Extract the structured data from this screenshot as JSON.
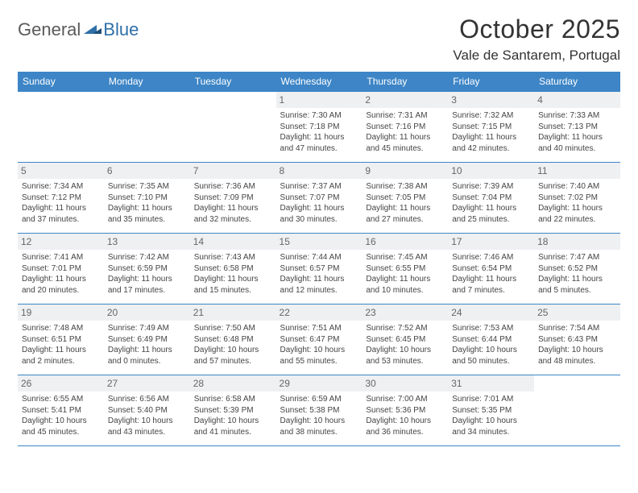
{
  "logo": {
    "general": "General",
    "blue": "Blue"
  },
  "title": "October 2025",
  "location": "Vale de Santarem, Portugal",
  "colors": {
    "header_bg": "#3d85c6",
    "header_fg": "#ffffff",
    "body_bg": "#ffffff",
    "text": "#333333",
    "daynum_bg": "#eef0f2",
    "daynum_fg": "#666666",
    "border": "#3d85c6",
    "logo_gray": "#5a5a5a",
    "logo_blue": "#2f6fa8"
  },
  "day_headers": [
    "Sunday",
    "Monday",
    "Tuesday",
    "Wednesday",
    "Thursday",
    "Friday",
    "Saturday"
  ],
  "weeks": [
    [
      {
        "n": "",
        "sr": "",
        "ss": "",
        "dl": ""
      },
      {
        "n": "",
        "sr": "",
        "ss": "",
        "dl": ""
      },
      {
        "n": "",
        "sr": "",
        "ss": "",
        "dl": ""
      },
      {
        "n": "1",
        "sr": "Sunrise: 7:30 AM",
        "ss": "Sunset: 7:18 PM",
        "dl": "Daylight: 11 hours and 47 minutes."
      },
      {
        "n": "2",
        "sr": "Sunrise: 7:31 AM",
        "ss": "Sunset: 7:16 PM",
        "dl": "Daylight: 11 hours and 45 minutes."
      },
      {
        "n": "3",
        "sr": "Sunrise: 7:32 AM",
        "ss": "Sunset: 7:15 PM",
        "dl": "Daylight: 11 hours and 42 minutes."
      },
      {
        "n": "4",
        "sr": "Sunrise: 7:33 AM",
        "ss": "Sunset: 7:13 PM",
        "dl": "Daylight: 11 hours and 40 minutes."
      }
    ],
    [
      {
        "n": "5",
        "sr": "Sunrise: 7:34 AM",
        "ss": "Sunset: 7:12 PM",
        "dl": "Daylight: 11 hours and 37 minutes."
      },
      {
        "n": "6",
        "sr": "Sunrise: 7:35 AM",
        "ss": "Sunset: 7:10 PM",
        "dl": "Daylight: 11 hours and 35 minutes."
      },
      {
        "n": "7",
        "sr": "Sunrise: 7:36 AM",
        "ss": "Sunset: 7:09 PM",
        "dl": "Daylight: 11 hours and 32 minutes."
      },
      {
        "n": "8",
        "sr": "Sunrise: 7:37 AM",
        "ss": "Sunset: 7:07 PM",
        "dl": "Daylight: 11 hours and 30 minutes."
      },
      {
        "n": "9",
        "sr": "Sunrise: 7:38 AM",
        "ss": "Sunset: 7:05 PM",
        "dl": "Daylight: 11 hours and 27 minutes."
      },
      {
        "n": "10",
        "sr": "Sunrise: 7:39 AM",
        "ss": "Sunset: 7:04 PM",
        "dl": "Daylight: 11 hours and 25 minutes."
      },
      {
        "n": "11",
        "sr": "Sunrise: 7:40 AM",
        "ss": "Sunset: 7:02 PM",
        "dl": "Daylight: 11 hours and 22 minutes."
      }
    ],
    [
      {
        "n": "12",
        "sr": "Sunrise: 7:41 AM",
        "ss": "Sunset: 7:01 PM",
        "dl": "Daylight: 11 hours and 20 minutes."
      },
      {
        "n": "13",
        "sr": "Sunrise: 7:42 AM",
        "ss": "Sunset: 6:59 PM",
        "dl": "Daylight: 11 hours and 17 minutes."
      },
      {
        "n": "14",
        "sr": "Sunrise: 7:43 AM",
        "ss": "Sunset: 6:58 PM",
        "dl": "Daylight: 11 hours and 15 minutes."
      },
      {
        "n": "15",
        "sr": "Sunrise: 7:44 AM",
        "ss": "Sunset: 6:57 PM",
        "dl": "Daylight: 11 hours and 12 minutes."
      },
      {
        "n": "16",
        "sr": "Sunrise: 7:45 AM",
        "ss": "Sunset: 6:55 PM",
        "dl": "Daylight: 11 hours and 10 minutes."
      },
      {
        "n": "17",
        "sr": "Sunrise: 7:46 AM",
        "ss": "Sunset: 6:54 PM",
        "dl": "Daylight: 11 hours and 7 minutes."
      },
      {
        "n": "18",
        "sr": "Sunrise: 7:47 AM",
        "ss": "Sunset: 6:52 PM",
        "dl": "Daylight: 11 hours and 5 minutes."
      }
    ],
    [
      {
        "n": "19",
        "sr": "Sunrise: 7:48 AM",
        "ss": "Sunset: 6:51 PM",
        "dl": "Daylight: 11 hours and 2 minutes."
      },
      {
        "n": "20",
        "sr": "Sunrise: 7:49 AM",
        "ss": "Sunset: 6:49 PM",
        "dl": "Daylight: 11 hours and 0 minutes."
      },
      {
        "n": "21",
        "sr": "Sunrise: 7:50 AM",
        "ss": "Sunset: 6:48 PM",
        "dl": "Daylight: 10 hours and 57 minutes."
      },
      {
        "n": "22",
        "sr": "Sunrise: 7:51 AM",
        "ss": "Sunset: 6:47 PM",
        "dl": "Daylight: 10 hours and 55 minutes."
      },
      {
        "n": "23",
        "sr": "Sunrise: 7:52 AM",
        "ss": "Sunset: 6:45 PM",
        "dl": "Daylight: 10 hours and 53 minutes."
      },
      {
        "n": "24",
        "sr": "Sunrise: 7:53 AM",
        "ss": "Sunset: 6:44 PM",
        "dl": "Daylight: 10 hours and 50 minutes."
      },
      {
        "n": "25",
        "sr": "Sunrise: 7:54 AM",
        "ss": "Sunset: 6:43 PM",
        "dl": "Daylight: 10 hours and 48 minutes."
      }
    ],
    [
      {
        "n": "26",
        "sr": "Sunrise: 6:55 AM",
        "ss": "Sunset: 5:41 PM",
        "dl": "Daylight: 10 hours and 45 minutes."
      },
      {
        "n": "27",
        "sr": "Sunrise: 6:56 AM",
        "ss": "Sunset: 5:40 PM",
        "dl": "Daylight: 10 hours and 43 minutes."
      },
      {
        "n": "28",
        "sr": "Sunrise: 6:58 AM",
        "ss": "Sunset: 5:39 PM",
        "dl": "Daylight: 10 hours and 41 minutes."
      },
      {
        "n": "29",
        "sr": "Sunrise: 6:59 AM",
        "ss": "Sunset: 5:38 PM",
        "dl": "Daylight: 10 hours and 38 minutes."
      },
      {
        "n": "30",
        "sr": "Sunrise: 7:00 AM",
        "ss": "Sunset: 5:36 PM",
        "dl": "Daylight: 10 hours and 36 minutes."
      },
      {
        "n": "31",
        "sr": "Sunrise: 7:01 AM",
        "ss": "Sunset: 5:35 PM",
        "dl": "Daylight: 10 hours and 34 minutes."
      },
      {
        "n": "",
        "sr": "",
        "ss": "",
        "dl": ""
      }
    ]
  ]
}
